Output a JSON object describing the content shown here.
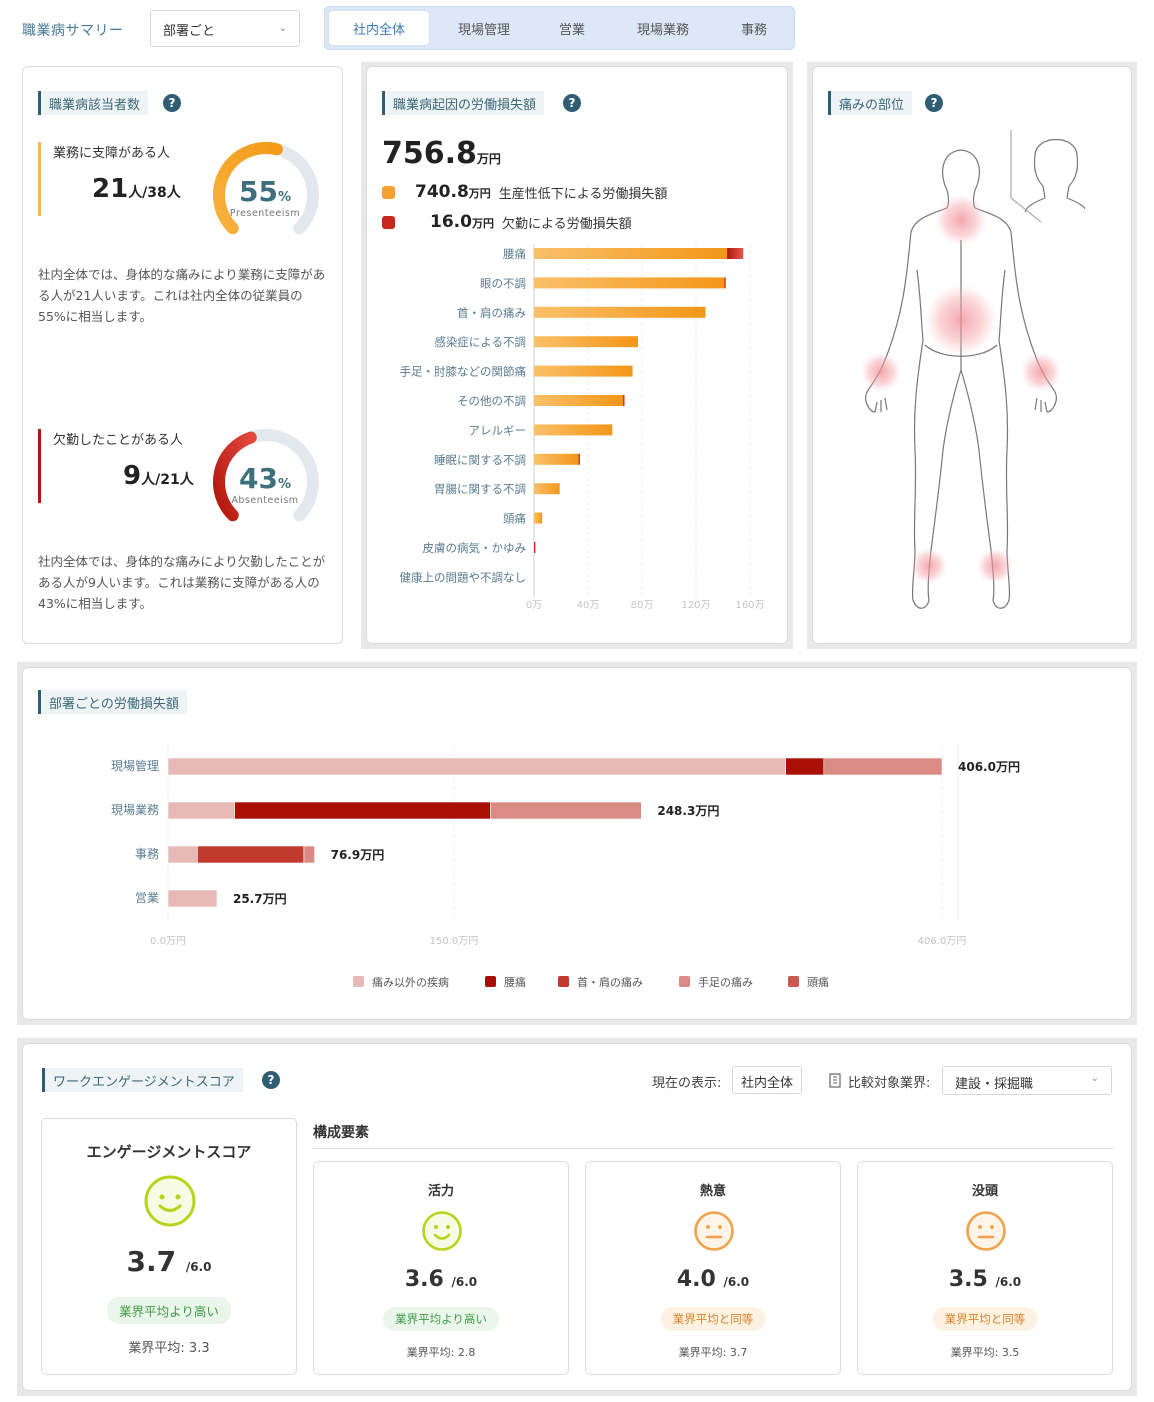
{
  "header": {
    "title": "職業病サマリー",
    "dept_select": "部署ごと",
    "tabs": [
      "社内全体",
      "現場管理",
      "営業",
      "現場業務",
      "事務"
    ],
    "active_tab": 0
  },
  "occupational": {
    "title": "職業病該当者数",
    "presenteeism": {
      "label": "業務に支障がある人",
      "count": "21",
      "count_unit": "人/38人",
      "percent": "55",
      "percent_unit": "%",
      "caption": "Presenteeism",
      "value": 55,
      "desc": "社内全体では、身体的な痛みにより業務に支障がある人が21人います。これは社内全体の従業員の55%に相当します。"
    },
    "absenteeism": {
      "label": "欠勤したことがある人",
      "count": "9",
      "count_unit": "人/21人",
      "percent": "43",
      "percent_unit": "%",
      "caption": "Absenteeism",
      "value": 43,
      "desc": "社内全体では、身体的な痛みにより欠勤したことがある人が9人います。これは業務に支障がある人の43%に相当します。"
    }
  },
  "loss": {
    "title": "職業病起因の労働損失額",
    "total": "756.8",
    "total_unit": "万円",
    "productivity": {
      "value": "740.8",
      "unit": "万円",
      "label": "生産性低下による労働損失額"
    },
    "absence": {
      "value": "16.0",
      "unit": "万円",
      "label": "欠勤による労働損失額"
    }
  },
  "pain": {
    "title": "痛みの部位"
  },
  "dept_loss": {
    "title": "部署ごとの労働損失額"
  },
  "engagement": {
    "title": "ワークエンゲージメントスコア",
    "current_label": "現在の表示:",
    "current_value": "社内全体",
    "compare_label": "比較対象業界:",
    "compare_value": "建設・採掘職",
    "components_title": "構成要素",
    "main": {
      "title": "エンゲージメントスコア",
      "score": "3.7",
      "max": "/6.0",
      "badge": "業界平均より高い",
      "avg": "業界平均: 3.3",
      "mood": "happy"
    },
    "components": [
      {
        "title": "活力",
        "score": "3.6",
        "max": "/6.0",
        "badge": "業界平均より高い",
        "avg": "業界平均: 2.8",
        "mood": "happy"
      },
      {
        "title": "熱意",
        "score": "4.0",
        "max": "/6.0",
        "badge": "業界平均と同等",
        "avg": "業界平均: 3.7",
        "mood": "neutral"
      },
      {
        "title": "没頭",
        "score": "3.5",
        "max": "/6.0",
        "badge": "業界平均と同等",
        "avg": "業界平均: 3.5",
        "mood": "neutral"
      }
    ]
  },
  "colors": {
    "accent": "#2f5e73",
    "orange": "#f5a030",
    "red": "#b01a10",
    "gauge_track": "#e3e8ef",
    "happy": "#b6d41c",
    "neutral": "#f2a24c"
  },
  "chart_data": [
    {
      "type": "bar",
      "orientation": "horizontal",
      "stacked": true,
      "categories": [
        "腰痛",
        "眼の不調",
        "首・肩の痛み",
        "感染症による不調",
        "手足・肘膝などの関節痛",
        "その他の不調",
        "アレルギー",
        "睡眠に関する不調",
        "胃腸に関する不調",
        "頭痛",
        "皮膚の病気・かゆみ",
        "健康上の問題や不調なし"
      ],
      "series": [
        {
          "name": "生産性低下による労働損失額",
          "values": [
            143,
            141,
            127,
            77,
            73,
            66,
            58,
            33,
            19,
            6,
            0,
            0
          ]
        },
        {
          "name": "欠勤による労働損失額",
          "values": [
            12,
            1,
            0,
            0,
            0,
            1,
            0,
            1,
            0,
            0,
            1,
            0
          ]
        }
      ],
      "xticks": [
        "0万",
        "40万",
        "80万",
        "120万",
        "160万"
      ],
      "xlim": [
        0,
        160
      ]
    },
    {
      "type": "bar",
      "orientation": "horizontal",
      "stacked": true,
      "categories": [
        "現場管理",
        "現場業務",
        "事務",
        "営業"
      ],
      "series": [
        {
          "name": "痛み以外の疾病",
          "values": [
            324.0,
            34.9,
            15.4,
            25.7
          ]
        },
        {
          "name": "腰痛",
          "values": [
            20.0,
            134.3,
            0,
            0
          ]
        },
        {
          "name": "首・肩の痛み",
          "values": [
            0,
            0,
            55.9,
            0
          ]
        },
        {
          "name": "手足の痛み",
          "values": [
            62.0,
            79.1,
            5.6,
            0
          ]
        },
        {
          "name": "頭痛",
          "values": [
            0,
            0,
            0,
            0
          ]
        }
      ],
      "totals": [
        "406.0万円",
        "248.3万円",
        "76.9万円",
        "25.7万円"
      ],
      "xticks": [
        "0.0万円",
        "150.0万円",
        "406.0万円"
      ],
      "xlim": [
        0,
        406.0
      ],
      "legend_position": "bottom"
    }
  ]
}
